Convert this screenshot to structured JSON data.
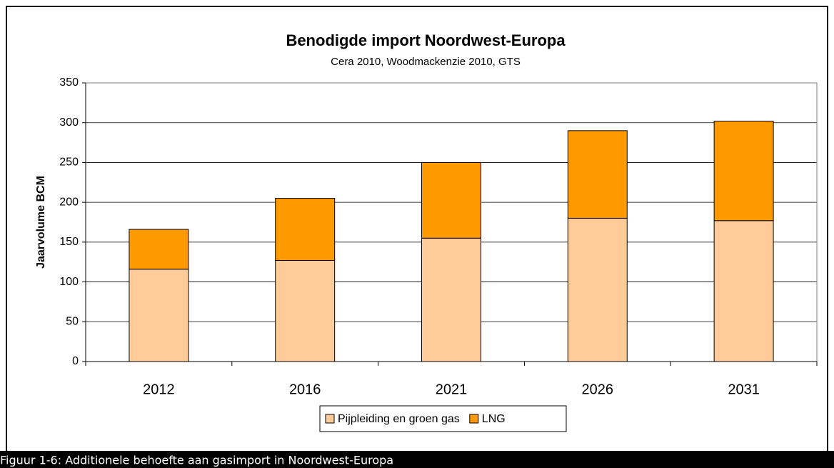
{
  "chart_data": {
    "type": "stacked_bar",
    "title": "Benodigde import Noordwest-Europa",
    "subtitle": "Cera 2010, Woodmackenzie 2010, GTS",
    "ylabel": "Jaarvolume BCM",
    "categories": [
      "2012",
      "2016",
      "2021",
      "2026",
      "2031"
    ],
    "series": [
      {
        "name": "Pijpleiding en groen gas",
        "color": "#ffcc99",
        "values": [
          116,
          127,
          155,
          180,
          177
        ]
      },
      {
        "name": "LNG",
        "color": "#ff9900",
        "values": [
          50,
          78,
          95,
          110,
          125
        ]
      }
    ],
    "ylim": [
      0,
      350
    ],
    "yticks": [
      0,
      50,
      100,
      150,
      200,
      250,
      300,
      350
    ],
    "grid": true,
    "legend": "bottom"
  },
  "caption": "Figuur 1-6: Additionele behoefte aan gasimport in Noordwest-Europa"
}
